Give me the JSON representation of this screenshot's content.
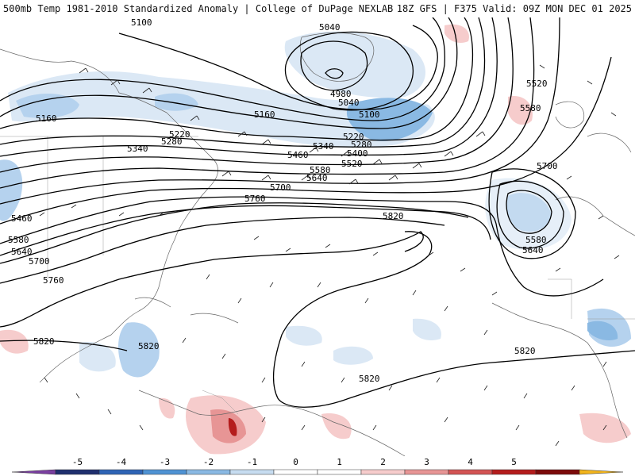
{
  "header": {
    "title_left": "500mb Temp 1981-2010 Standardized Anomaly | College of DuPage NEXLAB",
    "title_right": "18Z GFS | F375 Valid: 09Z MON DEC 01 2025"
  },
  "contours": [
    {
      "label": "5100"
    },
    {
      "label": "5040"
    },
    {
      "label": "4980"
    },
    {
      "label": "5040"
    },
    {
      "label": "5100"
    },
    {
      "label": "5160"
    },
    {
      "label": "5160"
    },
    {
      "label": "5220"
    },
    {
      "label": "5280"
    },
    {
      "label": "5340"
    },
    {
      "label": "5220"
    },
    {
      "label": "5280"
    },
    {
      "label": "5340"
    },
    {
      "label": "5400"
    },
    {
      "label": "5460"
    },
    {
      "label": "5520"
    },
    {
      "label": "5580"
    },
    {
      "label": "5640"
    },
    {
      "label": "5700"
    },
    {
      "label": "5760"
    },
    {
      "label": "5820"
    },
    {
      "label": "5520"
    },
    {
      "label": "5580"
    },
    {
      "label": "5700"
    },
    {
      "label": "5580"
    },
    {
      "label": "5640"
    },
    {
      "label": "5460"
    },
    {
      "label": "5580"
    },
    {
      "label": "5640"
    },
    {
      "label": "5700"
    },
    {
      "label": "5760"
    },
    {
      "label": "5820"
    },
    {
      "label": "5820"
    },
    {
      "label": "5820"
    },
    {
      "label": "5820"
    }
  ],
  "colorbar": {
    "ticks": [
      "-5",
      "-4",
      "-3",
      "-2",
      "-1",
      "0",
      "1",
      "2",
      "3",
      "4",
      "5"
    ],
    "colors": [
      "#7a3fa0",
      "#1f2f6e",
      "#2e64b6",
      "#4f93d4",
      "#8ab9e3",
      "#c7dcf0",
      "#ffffff",
      "#ffffff",
      "#f6cccc",
      "#e79595",
      "#d35454",
      "#b41c1c",
      "#7c0a0a",
      "#f2b41c"
    ]
  }
}
